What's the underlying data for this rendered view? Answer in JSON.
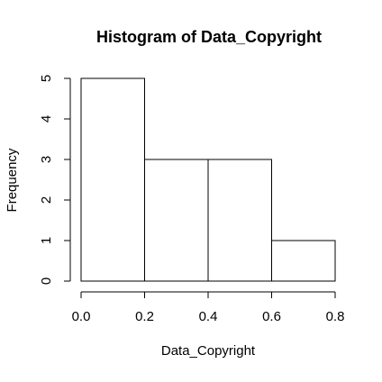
{
  "chart_data": {
    "type": "bar",
    "subtype": "histogram",
    "title": "Histogram of Data_Copyright",
    "xlabel": "Data_Copyright",
    "ylabel": "Frequency",
    "bins": [
      {
        "x0": 0.0,
        "x1": 0.2,
        "count": 5
      },
      {
        "x0": 0.2,
        "x1": 0.4,
        "count": 3
      },
      {
        "x0": 0.4,
        "x1": 0.6,
        "count": 3
      },
      {
        "x0": 0.6,
        "x1": 0.8,
        "count": 1
      }
    ],
    "xlim": [
      0.0,
      0.8
    ],
    "ylim": [
      0,
      5
    ],
    "x_ticks": [
      0.0,
      0.2,
      0.4,
      0.6,
      0.8
    ],
    "x_tick_labels": [
      "0.0",
      "0.2",
      "0.4",
      "0.6",
      "0.8"
    ],
    "y_ticks": [
      0,
      1,
      2,
      3,
      4,
      5
    ],
    "y_tick_labels": [
      "0",
      "1",
      "2",
      "3",
      "4",
      "5"
    ],
    "grid": false,
    "bar_fill": "#ffffff",
    "bar_stroke": "#000000"
  }
}
